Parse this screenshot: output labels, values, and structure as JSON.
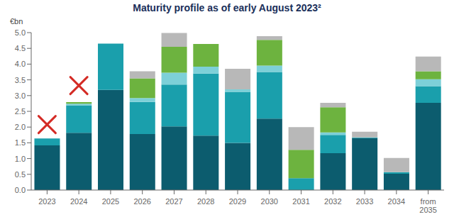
{
  "chart_data": {
    "type": "bar",
    "title": "Maturity profile as of early August 2023²",
    "ylabel": "€bn",
    "categories": [
      "2023",
      "2024",
      "2025",
      "2026",
      "2027",
      "2028",
      "2029",
      "2030",
      "2031",
      "2032",
      "2033",
      "2034",
      "from\n2035"
    ],
    "stacked": true,
    "series": [
      {
        "color": "#0c5c6e",
        "values": [
          1.42,
          1.82,
          3.18,
          1.78,
          2.02,
          1.73,
          1.5,
          2.27,
          0.0,
          1.17,
          1.65,
          0.52,
          2.77
        ]
      },
      {
        "color": "#1a9fac",
        "values": [
          0.22,
          0.87,
          1.47,
          1.02,
          1.33,
          1.97,
          1.62,
          1.48,
          0.38,
          0.58,
          0.02,
          0.05,
          0.53
        ]
      },
      {
        "color": "#7dd0d8",
        "values": [
          0.0,
          0.05,
          0.0,
          0.12,
          0.38,
          0.22,
          0.08,
          0.2,
          0.0,
          0.08,
          0.0,
          0.0,
          0.22
        ]
      },
      {
        "color": "#6db33f",
        "values": [
          0.0,
          0.05,
          0.0,
          0.63,
          0.82,
          0.72,
          0.0,
          0.82,
          0.9,
          0.8,
          0.0,
          0.0,
          0.25
        ]
      },
      {
        "color": "#b8b8b8",
        "values": [
          0.0,
          0.0,
          0.0,
          0.22,
          0.44,
          0.0,
          0.65,
          0.12,
          0.72,
          0.14,
          0.18,
          0.45,
          0.47
        ]
      }
    ],
    "crosses": [
      {
        "x": "2023",
        "y": 2.08
      },
      {
        "x": "2024",
        "y": 3.32
      }
    ],
    "cross_color": "#d42b25",
    "ylim": [
      0,
      5.0
    ],
    "yticks": [
      {
        "value": 0,
        "label": "0.0"
      },
      {
        "value": 0.5,
        "label": "0.5"
      },
      {
        "value": 1,
        "label": "1.0"
      },
      {
        "value": 1.5,
        "label": "1.5"
      },
      {
        "value": 2,
        "label": "2.0"
      },
      {
        "value": 2.5,
        "label": "2.5"
      },
      {
        "value": 3,
        "label": "3.0"
      },
      {
        "value": 3.5,
        "label": "3.5"
      },
      {
        "value": 4,
        "label": "4.0"
      },
      {
        "value": 4.5,
        "label": "4.5"
      },
      {
        "value": 5,
        "label": "5.0"
      }
    ],
    "grid": false,
    "title_color": "#1a2f5a"
  }
}
